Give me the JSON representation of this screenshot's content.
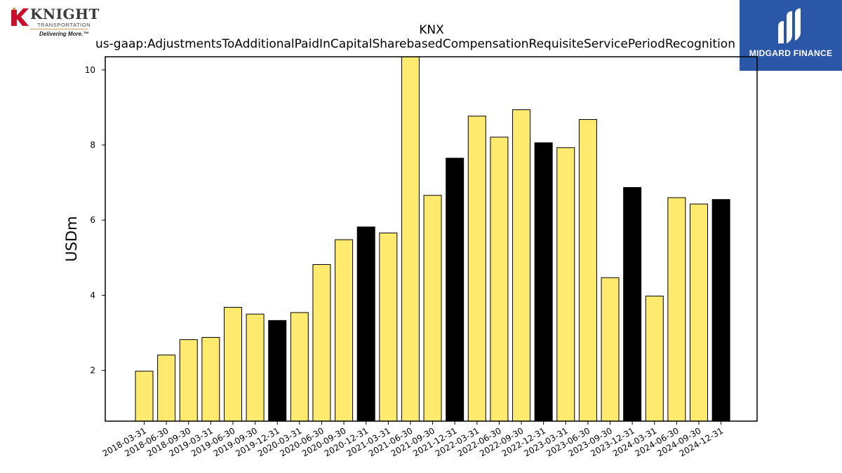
{
  "logos": {
    "left": {
      "name": "KNIGHT",
      "subtitle": "TRANSPORTATION",
      "tagline": "Delivering More.™",
      "colors": {
        "red": "#c8102e",
        "gold": "#c5a25a",
        "text": "#3a3a3a"
      }
    },
    "right": {
      "name": "MIDGARD FINANCE",
      "colors": {
        "background": "#2b57a8",
        "text": "#ffffff"
      }
    }
  },
  "chart_data": {
    "type": "bar",
    "title": "KNX",
    "subtitle": "us-gaap:AdjustmentsToAdditionalPaidInCapitalSharebasedCompensationRequisiteServicePeriodRecognition",
    "xlabel": "",
    "ylabel": "USDm",
    "ylim": [
      0.65,
      10.35
    ],
    "yticks": [
      2,
      4,
      6,
      8,
      10
    ],
    "grid": false,
    "legend": "none",
    "colors": {
      "quarter": "#ffea70",
      "year_end": "#000000",
      "edge": "#000000"
    },
    "categories": [
      "2018-03-31",
      "2018-06-30",
      "2018-09-30",
      "2019-03-31",
      "2019-06-30",
      "2019-09-30",
      "2019-12-31",
      "2020-03-31",
      "2020-06-30",
      "2020-09-30",
      "2020-12-31",
      "2021-03-31",
      "2021-06-30",
      "2021-09-30",
      "2021-12-31",
      "2022-03-31",
      "2022-06-30",
      "2022-09-30",
      "2022-12-31",
      "2023-03-31",
      "2023-06-30",
      "2023-09-30",
      "2023-12-31",
      "2024-03-31",
      "2024-06-30",
      "2024-09-30",
      "2024-12-31"
    ],
    "values": [
      1.98,
      2.41,
      2.82,
      2.88,
      3.68,
      3.5,
      3.33,
      3.54,
      4.82,
      5.48,
      5.82,
      5.66,
      10.45,
      6.66,
      7.65,
      8.77,
      8.21,
      8.94,
      8.06,
      7.93,
      8.68,
      4.47,
      6.87,
      3.98,
      6.6,
      6.43,
      6.55
    ],
    "year_end_flags": [
      false,
      false,
      false,
      false,
      false,
      false,
      true,
      false,
      false,
      false,
      true,
      false,
      false,
      false,
      true,
      false,
      false,
      false,
      true,
      false,
      false,
      false,
      true,
      false,
      false,
      false,
      true
    ]
  }
}
